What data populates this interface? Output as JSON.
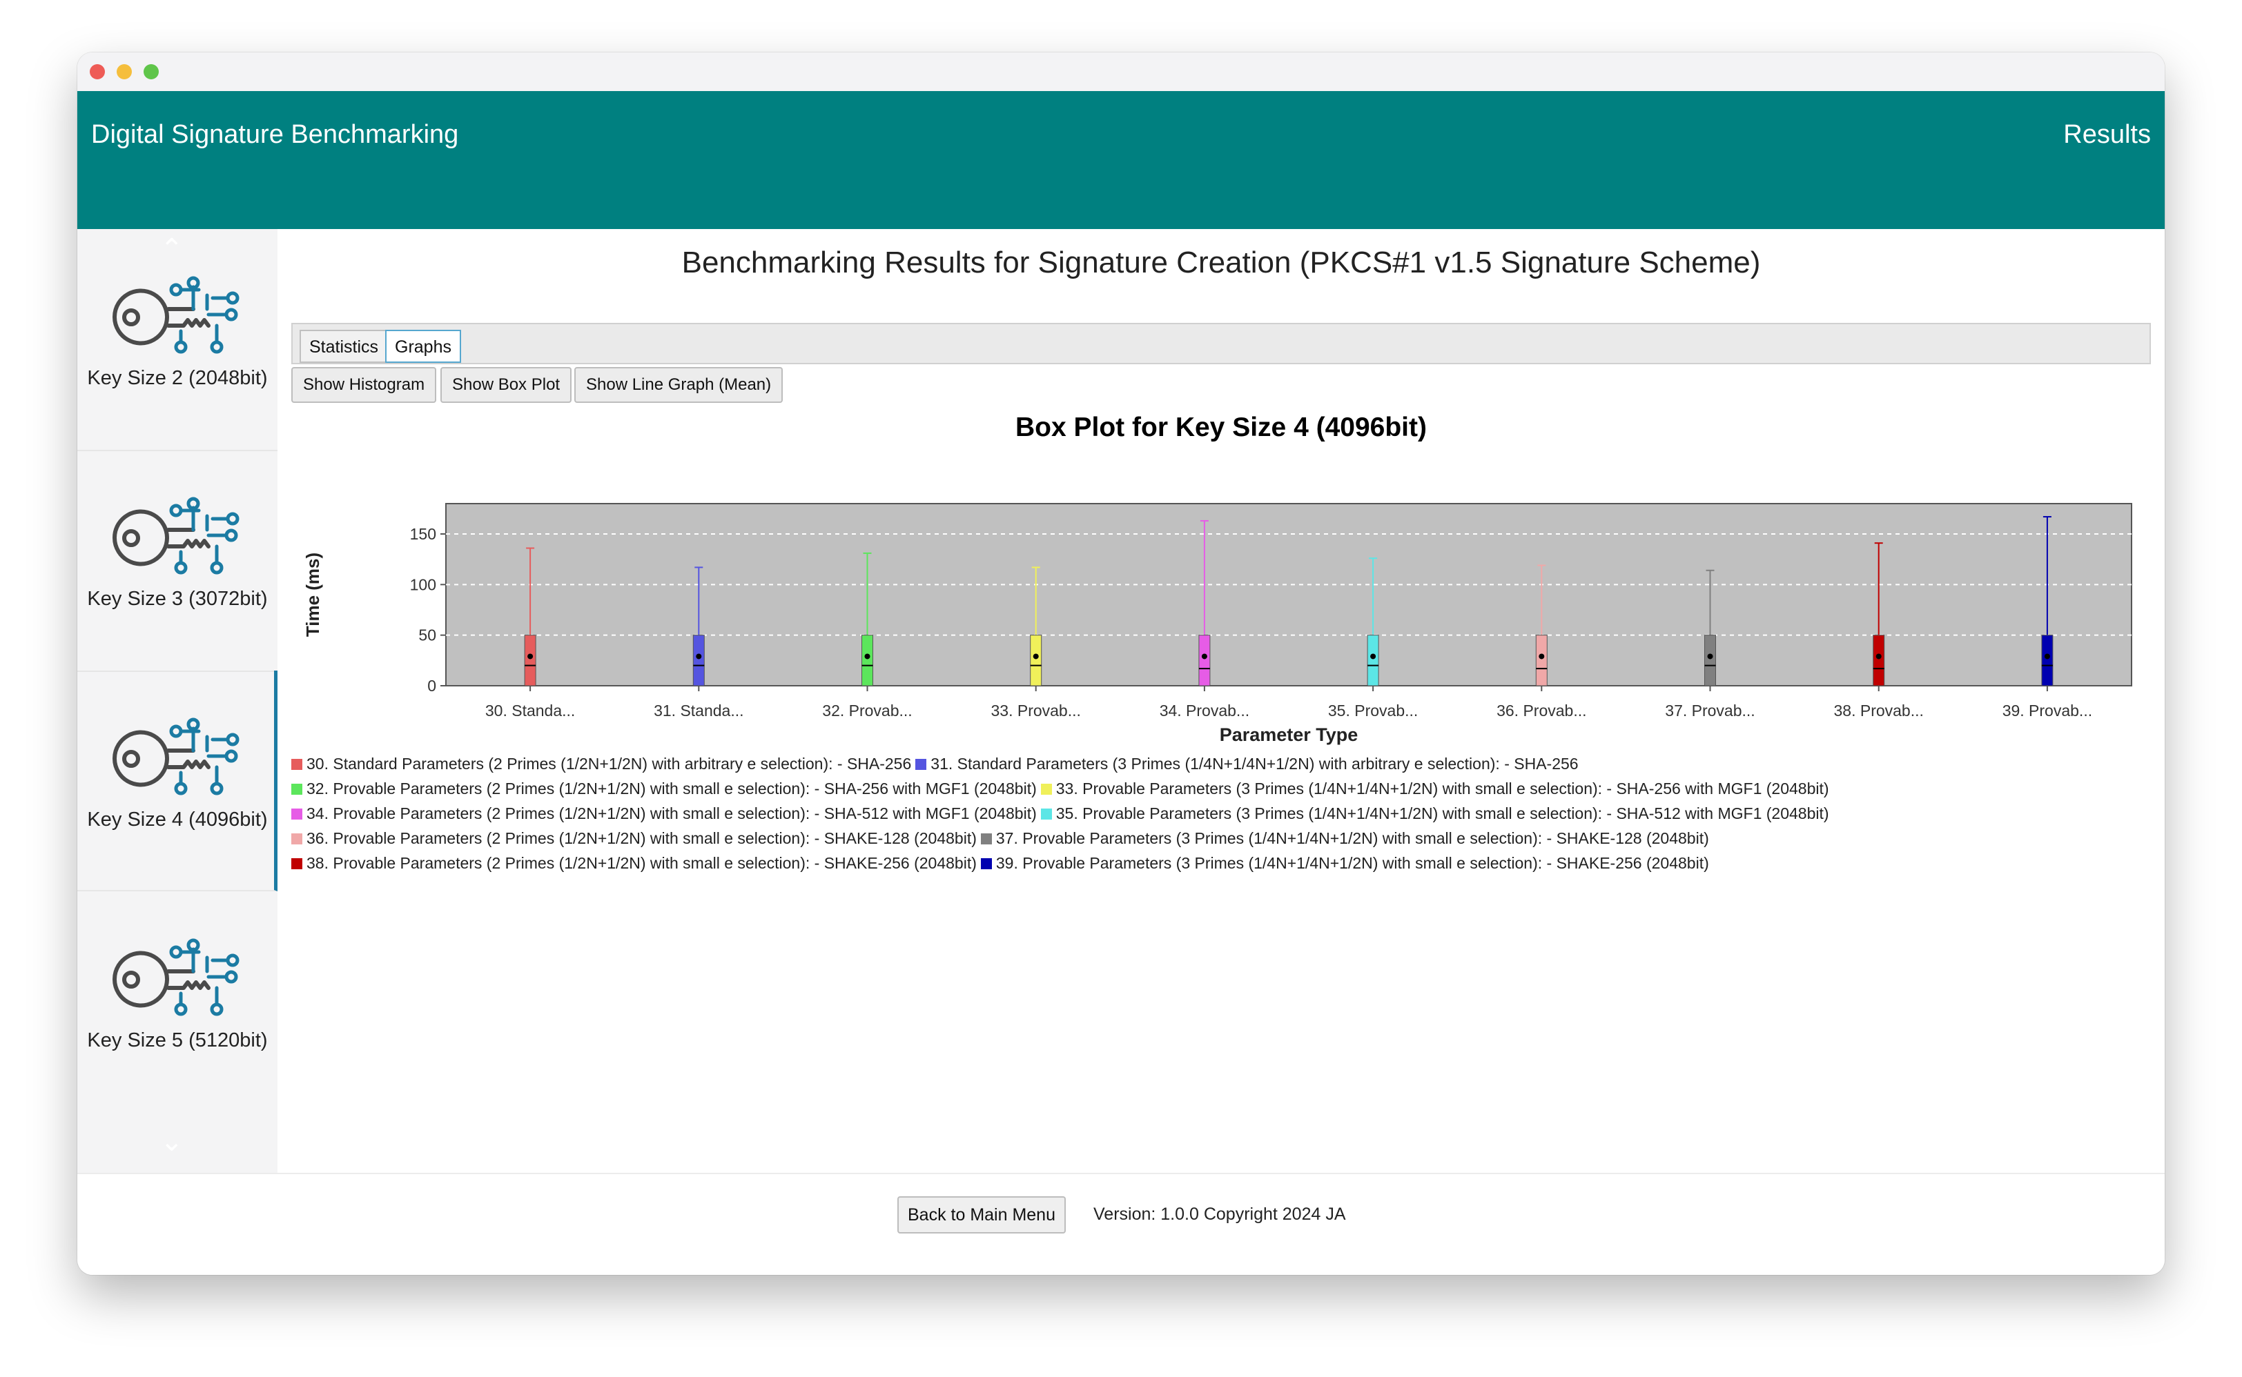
{
  "app": {
    "title": "Digital Signature Benchmarking",
    "results_link": "Results",
    "accent_color": "#008080"
  },
  "sidebar": {
    "items": [
      {
        "label": "Key Size 2 (2048bit)",
        "icon": "key-circuit-icon",
        "active": false
      },
      {
        "label": "Key Size 3 (3072bit)",
        "icon": "key-circuit-icon",
        "active": false
      },
      {
        "label": "Key Size 4 (4096bit)",
        "icon": "key-circuit-icon",
        "active": true
      },
      {
        "label": "Key Size 5 (5120bit)",
        "icon": "key-circuit-icon",
        "active": false
      }
    ],
    "up_icon": "chevron-up-icon",
    "down_icon": "chevron-down-icon"
  },
  "main": {
    "title": "Benchmarking Results for Signature Creation (PKCS#1 v1.5 Signature Scheme)",
    "tabs": [
      {
        "label": "Statistics",
        "selected": false
      },
      {
        "label": "Graphs",
        "selected": true
      }
    ],
    "graph_buttons": [
      "Show Histogram",
      "Show Box Plot",
      "Show Line Graph (Mean)"
    ]
  },
  "chart_data": {
    "type": "box",
    "title": "Box Plot for Key Size 4 (4096bit)",
    "xlabel": "Parameter Type",
    "ylabel": "Time (ms)",
    "ylim": [
      0,
      180
    ],
    "yticks": [
      0,
      50,
      100,
      150
    ],
    "grid": true,
    "legend_position": "bottom",
    "categories": [
      "30. Standa...",
      "31. Standa...",
      "32. Provab...",
      "33. Provab...",
      "34. Provab...",
      "35. Provab...",
      "36. Provab...",
      "37. Provab...",
      "38. Provab...",
      "39. Provab..."
    ],
    "series": [
      {
        "name": "30. Standard Parameters (2 Primes (1/2N+1/2N) with arbitrary e selection): - SHA-256",
        "color": "#e65c5c",
        "min": 0,
        "q1": 0,
        "median": 20,
        "q3": 50,
        "max": 136,
        "mean": 29
      },
      {
        "name": "31. Standard Parameters (3 Primes (1/4N+1/4N+1/2N) with arbitrary e selection): - SHA-256",
        "color": "#5555e0",
        "min": 0,
        "q1": 0,
        "median": 20,
        "q3": 50,
        "max": 117,
        "mean": 29
      },
      {
        "name": "32. Provable Parameters (2 Primes (1/2N+1/2N) with small e selection): - SHA-256 with MGF1 (2048bit)",
        "color": "#5ce65c",
        "min": 0,
        "q1": 0,
        "median": 20,
        "q3": 50,
        "max": 131,
        "mean": 29
      },
      {
        "name": "33. Provable Parameters (3 Primes (1/4N+1/4N+1/2N) with small e selection): - SHA-256 with MGF1 (2048bit)",
        "color": "#f0f05a",
        "min": 0,
        "q1": 0,
        "median": 20,
        "q3": 50,
        "max": 117,
        "mean": 29
      },
      {
        "name": "34. Provable Parameters (2 Primes (1/2N+1/2N) with small e selection): - SHA-512 with MGF1 (2048bit)",
        "color": "#e65ce6",
        "min": 0,
        "q1": 0,
        "median": 17,
        "q3": 50,
        "max": 163,
        "mean": 29
      },
      {
        "name": "35. Provable Parameters (3 Primes (1/4N+1/4N+1/2N) with small e selection): - SHA-512 with MGF1 (2048bit)",
        "color": "#5ce6e6",
        "min": 0,
        "q1": 0,
        "median": 20,
        "q3": 50,
        "max": 126,
        "mean": 29
      },
      {
        "name": "36. Provable Parameters (2 Primes (1/2N+1/2N) with small e selection): - SHAKE-128 (2048bit)",
        "color": "#f0a8a8",
        "min": 0,
        "q1": 0,
        "median": 17,
        "q3": 50,
        "max": 119,
        "mean": 29
      },
      {
        "name": "37. Provable Parameters (3 Primes (1/4N+1/4N+1/2N) with small e selection): - SHAKE-128 (2048bit)",
        "color": "#808080",
        "min": 0,
        "q1": 0,
        "median": 20,
        "q3": 50,
        "max": 114,
        "mean": 29
      },
      {
        "name": "38. Provable Parameters (2 Primes (1/2N+1/2N) with small e selection): - SHAKE-256 (2048bit)",
        "color": "#c00000",
        "min": 0,
        "q1": 0,
        "median": 17,
        "q3": 50,
        "max": 141,
        "mean": 29
      },
      {
        "name": "39. Provable Parameters (3 Primes (1/4N+1/4N+1/2N) with small e selection): - SHAKE-256 (2048bit)",
        "color": "#0000b0",
        "min": 0,
        "q1": 0,
        "median": 20,
        "q3": 50,
        "max": 167,
        "mean": 29
      }
    ]
  },
  "footer": {
    "back_button": "Back to Main Menu",
    "version": "Version: 1.0.0 Copyright 2024 JA"
  }
}
